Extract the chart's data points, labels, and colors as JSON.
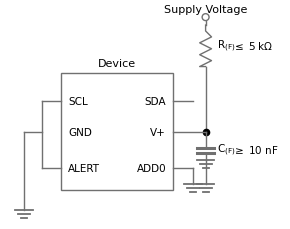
{
  "background_color": "#ffffff",
  "line_color": "#707070",
  "text_color": "#000000",
  "box_color": "#707070",
  "dot_color": "#000000",
  "supply_label": "Supply Voltage",
  "device_label": "Device",
  "scl_label": "SCL",
  "sda_label": "SDA",
  "gnd_label": "GND",
  "vplus_label": "V+",
  "alert_label": "ALERT",
  "add0_label": "ADD0",
  "r_label1": "R",
  "r_sub": "(F)",
  "r_label2": "≤ 5 kΩ",
  "c_label1": "C",
  "c_sub": "(F)",
  "c_label2": "≥ 10 nF"
}
